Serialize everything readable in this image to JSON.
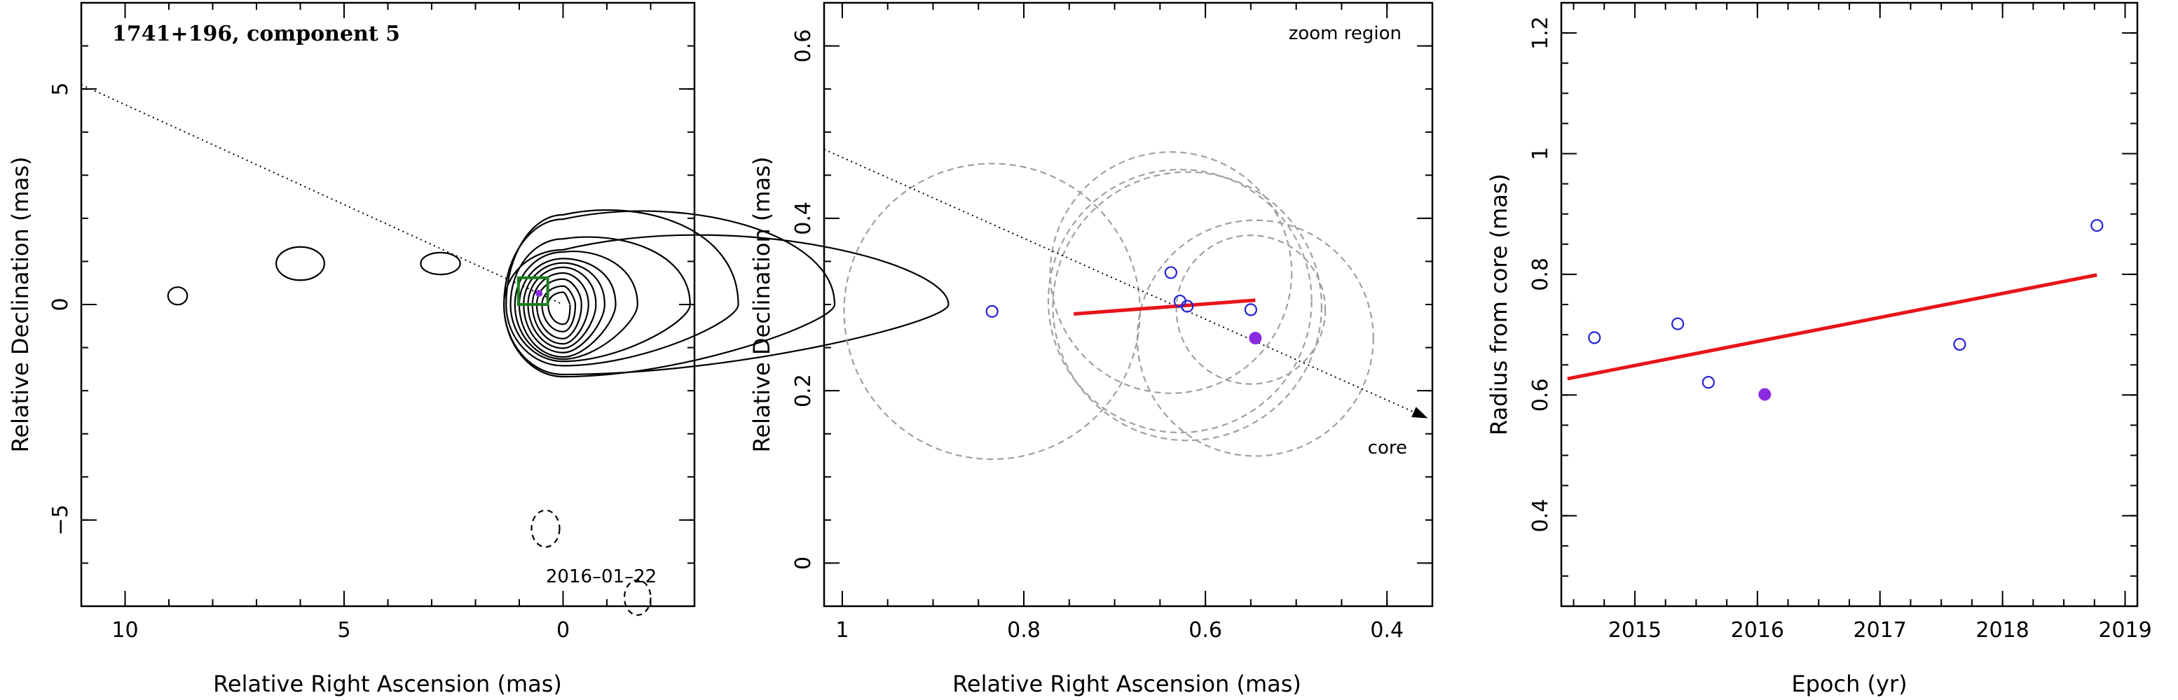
{
  "chart_data": [
    {
      "type": "scatter",
      "panel": "vlba-map",
      "title": "1741+196, component 5",
      "xlabel": "Relative Right Ascension (mas)",
      "ylabel": "Relative Declination (mas)",
      "xlim": [
        11,
        -3
      ],
      "ylim": [
        -7,
        7
      ],
      "xticks": [
        "10",
        "5",
        "0"
      ],
      "yticks": [
        "5",
        "0",
        "−5"
      ],
      "annotations": [
        "2016–01–22"
      ],
      "grid": false,
      "colors": {
        "contour": "#000000",
        "zoom_box": "#1e7d1e",
        "marker": "#8a2be2"
      },
      "components": [
        {
          "name": "core",
          "ra": 0.0,
          "dec": 0.0
        },
        {
          "name": "component 5",
          "ra": 0.55,
          "dec": 0.26
        }
      ],
      "zoom_box": {
        "ra_range": [
          1.02,
          0.35
        ],
        "dec_range": [
          0.0,
          0.62
        ]
      },
      "jet_axis": {
        "from": [
          11,
          5.1
        ],
        "to": [
          0,
          0
        ]
      }
    },
    {
      "type": "scatter",
      "panel": "zoom",
      "title": "",
      "xlabel": "Relative Right Ascension (mas)",
      "ylabel": "Relative Declination (mas)",
      "xlim": [
        1.02,
        0.35
      ],
      "ylim": [
        -0.05,
        0.65
      ],
      "xticks": [
        "1",
        "0.8",
        "0.6",
        "0.4"
      ],
      "yticks": [
        "0",
        "0.2",
        "0.4",
        "0.6"
      ],
      "annotations": [
        "zoom region",
        "core"
      ],
      "grid": false,
      "colors": {
        "points": "#2323d8",
        "highlight": "#8a2be2",
        "fit": "#e8141b",
        "circles": "#a0a0a0"
      },
      "points": [
        {
          "x": 0.835,
          "y": 0.292,
          "filled": false
        },
        {
          "x": 0.638,
          "y": 0.337,
          "filled": false
        },
        {
          "x": 0.628,
          "y": 0.304,
          "filled": false
        },
        {
          "x": 0.62,
          "y": 0.298,
          "filled": false
        },
        {
          "x": 0.55,
          "y": 0.294,
          "filled": false
        },
        {
          "x": 0.545,
          "y": 0.261,
          "filled": true
        }
      ],
      "circles": [
        {
          "x": 0.835,
          "y": 0.292,
          "r": 0.163
        },
        {
          "x": 0.638,
          "y": 0.337,
          "r": 0.133
        },
        {
          "x": 0.628,
          "y": 0.304,
          "r": 0.145
        },
        {
          "x": 0.62,
          "y": 0.298,
          "r": 0.148
        },
        {
          "x": 0.55,
          "y": 0.294,
          "r": 0.082
        },
        {
          "x": 0.545,
          "y": 0.261,
          "r": 0.13
        }
      ],
      "fit": {
        "x": [
          0.745,
          0.545
        ],
        "y": [
          0.289,
          0.305
        ]
      },
      "direction": {
        "from": [
          1.02,
          0.48
        ],
        "to": [
          0.355,
          0.168
        ]
      }
    },
    {
      "type": "scatter",
      "panel": "radius-vs-epoch",
      "title": "",
      "xlabel": "Epoch (yr)",
      "ylabel": "Radius from core (mas)",
      "xlim": [
        2014.4,
        2019.1
      ],
      "ylim": [
        0.25,
        1.25
      ],
      "xticks": [
        "2015",
        "2016",
        "2017",
        "2018",
        "2019"
      ],
      "yticks": [
        "0.4",
        "0.6",
        "0.8",
        "1",
        "1.2"
      ],
      "grid": false,
      "colors": {
        "points": "#2323d8",
        "highlight": "#8a2be2",
        "fit": "#e8141b"
      },
      "points": [
        {
          "x": 2014.67,
          "y": 0.695,
          "filled": false
        },
        {
          "x": 2015.35,
          "y": 0.718,
          "filled": false
        },
        {
          "x": 2015.6,
          "y": 0.621,
          "filled": false
        },
        {
          "x": 2016.06,
          "y": 0.601,
          "filled": true
        },
        {
          "x": 2017.65,
          "y": 0.684,
          "filled": false
        },
        {
          "x": 2018.77,
          "y": 0.881,
          "filled": false
        }
      ],
      "fit": {
        "x": [
          2014.45,
          2018.77
        ],
        "y": [
          0.627,
          0.799
        ]
      }
    }
  ]
}
